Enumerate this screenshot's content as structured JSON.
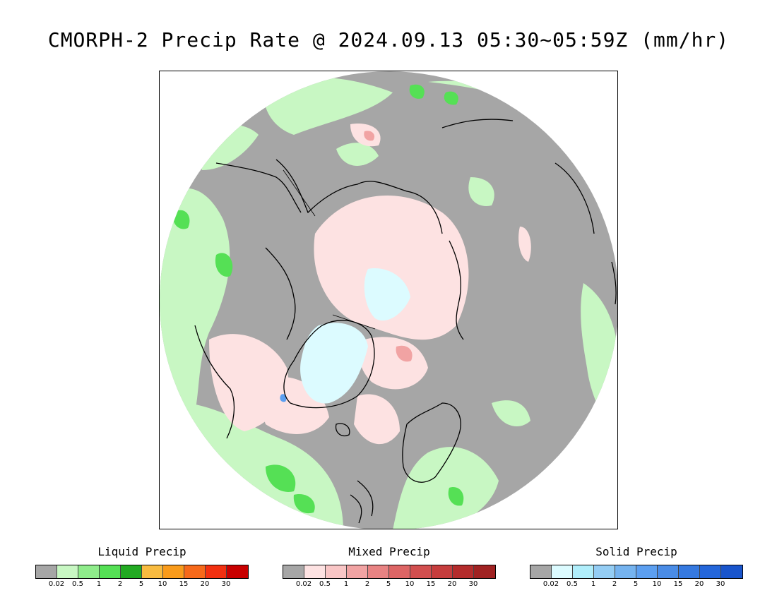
{
  "title": "CMORPH-2 Precip Rate @ 2024.09.13 05:30~05:59Z (mm/hr)",
  "legends": [
    {
      "title": "Liquid Precip",
      "colors": [
        "#a6a6a6",
        "#c8f7c3",
        "#8fec8b",
        "#55e055",
        "#22aa22",
        "#f8bb40",
        "#f99b1b",
        "#f6691a",
        "#f23010",
        "#c80000"
      ],
      "ticks": [
        "0.02",
        "0.5",
        "1",
        "2",
        "5",
        "10",
        "15",
        "20",
        "30"
      ]
    },
    {
      "title": "Mixed Precip",
      "colors": [
        "#a6a6a6",
        "#fde2e2",
        "#f9c6c6",
        "#f1a3a3",
        "#e88383",
        "#dd6565",
        "#d24f4f",
        "#c63d3d",
        "#b42c2c",
        "#a02222"
      ],
      "ticks": [
        "0.02",
        "0.5",
        "1",
        "2",
        "5",
        "10",
        "15",
        "20",
        "30"
      ]
    },
    {
      "title": "Solid Precip",
      "colors": [
        "#a6a6a6",
        "#dcfbff",
        "#b0eefb",
        "#94cdf4",
        "#75b3ef",
        "#5c9ff0",
        "#4a8ce6",
        "#3579e0",
        "#2466da",
        "#1955cc"
      ],
      "ticks": [
        "0.02",
        "0.5",
        "1",
        "2",
        "5",
        "10",
        "15",
        "20",
        "30"
      ]
    }
  ]
}
